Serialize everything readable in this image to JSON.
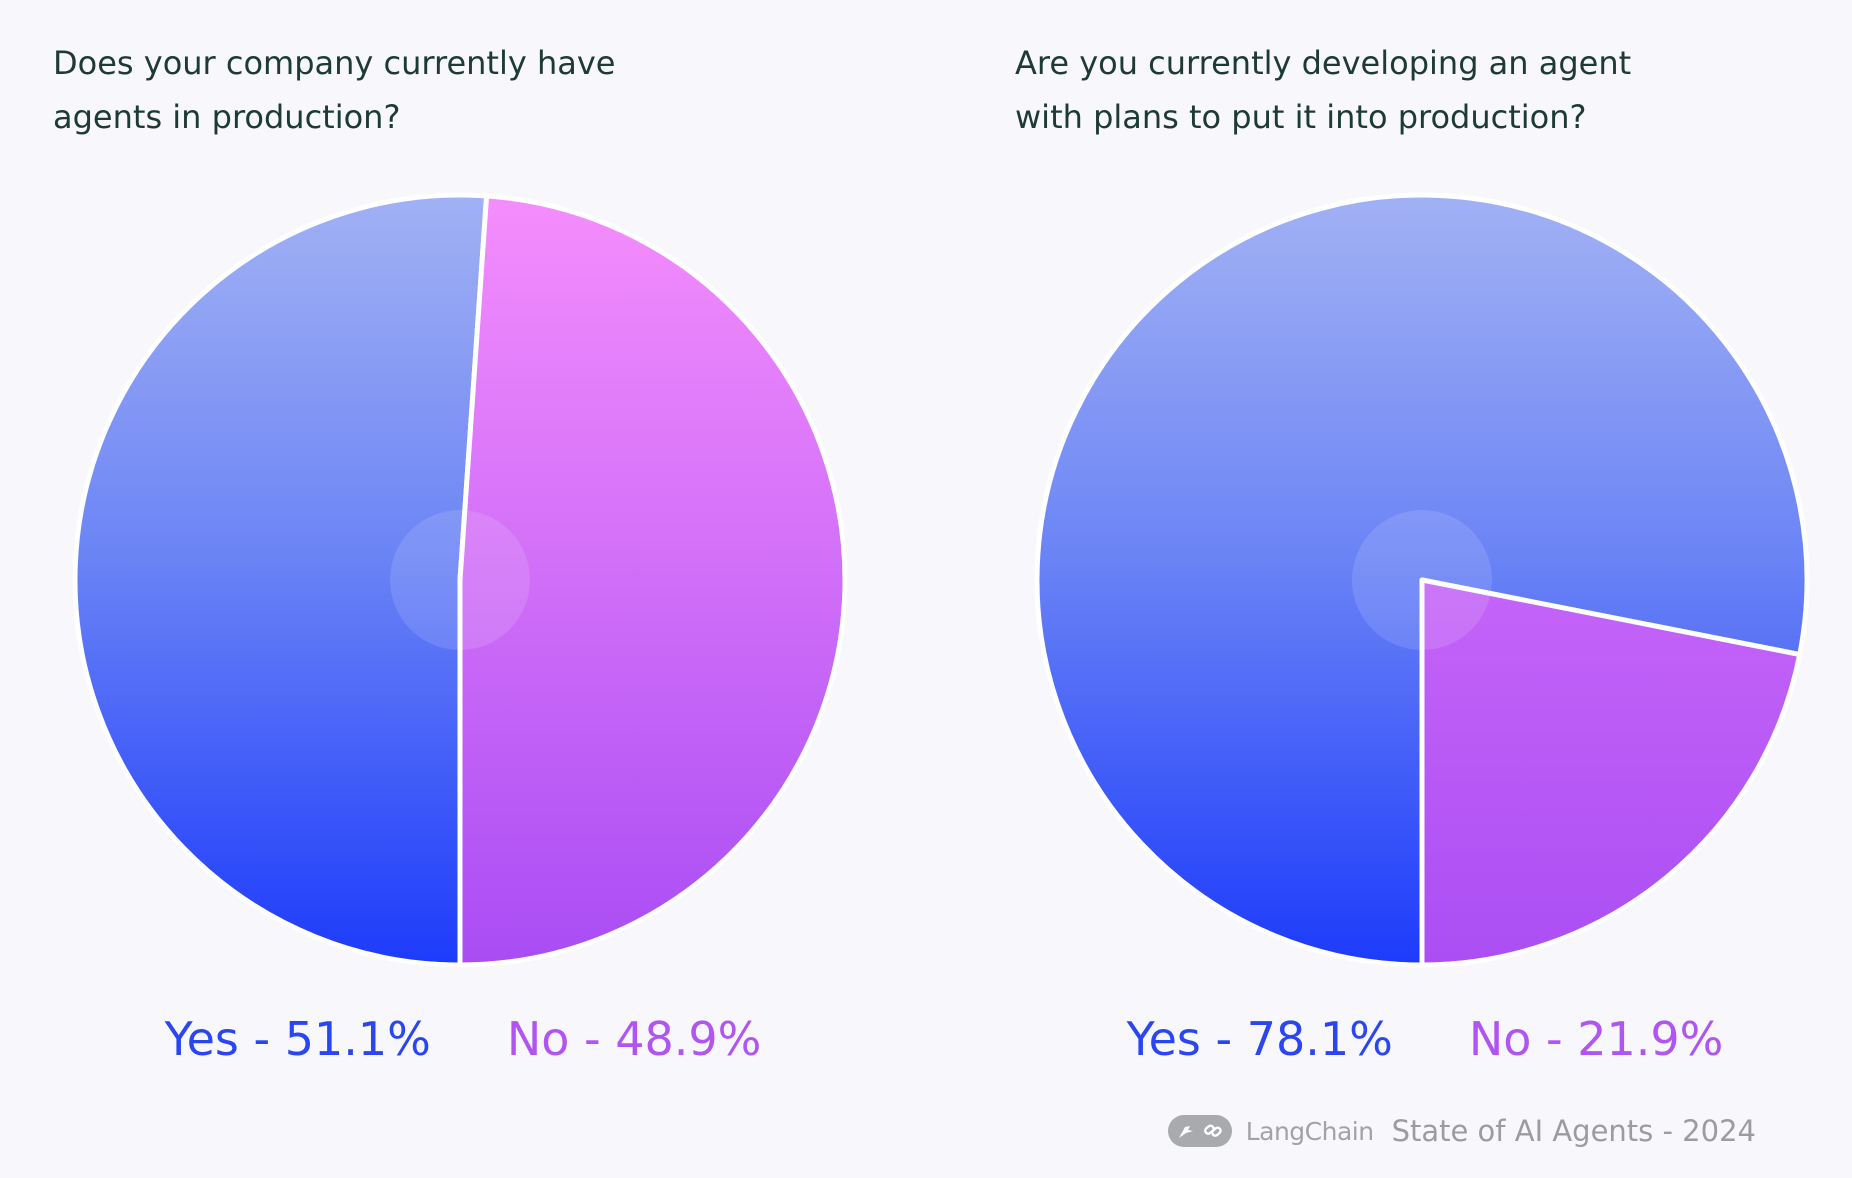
{
  "chart_data": [
    {
      "type": "pie",
      "title": "Does your company currently have agents in production?",
      "categories": [
        "Yes",
        "No"
      ],
      "values": [
        51.1,
        48.9
      ],
      "labels": [
        "Yes - 51.1%",
        "No - 48.9%"
      ],
      "colors": [
        "#2a46f2",
        "#b055f2"
      ],
      "legend_placement": "bottom"
    },
    {
      "type": "pie",
      "title": "Are you currently developing an agent with plans to put it into production?",
      "categories": [
        "Yes",
        "No"
      ],
      "values": [
        78.1,
        21.9
      ],
      "labels": [
        "Yes - 78.1%",
        "No - 21.9%"
      ],
      "colors": [
        "#2a46f2",
        "#b055f2"
      ],
      "legend_placement": "bottom"
    }
  ],
  "footer": {
    "brand": "LangChain",
    "caption": "State of AI Agents - 2024",
    "logo_icon": "langchain-parrot-link-icon"
  }
}
